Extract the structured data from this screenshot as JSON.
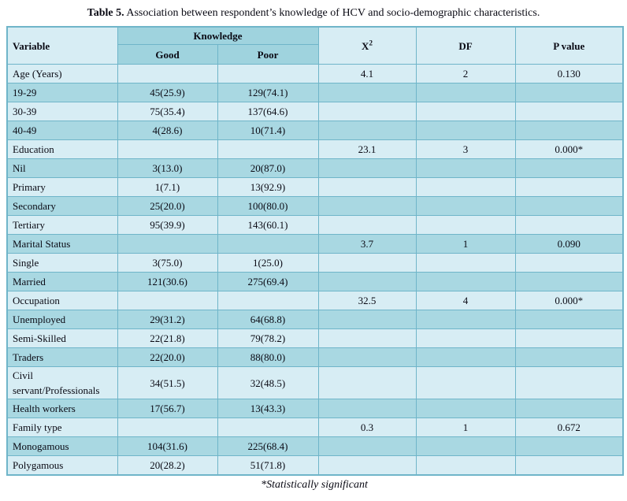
{
  "title": {
    "label": "Table 5.",
    "text": " Association between respondent’s knowledge of HCV and socio-demographic characteristics."
  },
  "table": {
    "header": {
      "variable": "Variable",
      "knowledge": "Knowledge",
      "good": "Good",
      "poor": "Poor",
      "chi_base": "X",
      "chi_sup": "2",
      "df": "DF",
      "p_value": "P value"
    },
    "rows": [
      {
        "variable": "Age (Years)",
        "good": "",
        "poor": "",
        "x2": "4.1",
        "df": "2",
        "p": "0.130"
      },
      {
        "variable": "19-29",
        "good": "45(25.9)",
        "poor": "129(74.1)",
        "x2": "",
        "df": "",
        "p": ""
      },
      {
        "variable": "30-39",
        "good": "75(35.4)",
        "poor": "137(64.6)",
        "x2": "",
        "df": "",
        "p": ""
      },
      {
        "variable": "40-49",
        "good": "4(28.6)",
        "poor": "10(71.4)",
        "x2": "",
        "df": "",
        "p": ""
      },
      {
        "variable": "Education",
        "good": "",
        "poor": "",
        "x2": "23.1",
        "df": "3",
        "p": "0.000*"
      },
      {
        "variable": "Nil",
        "good": "3(13.0)",
        "poor": "20(87.0)",
        "x2": "",
        "df": "",
        "p": ""
      },
      {
        "variable": "Primary",
        "good": "1(7.1)",
        "poor": "13(92.9)",
        "x2": "",
        "df": "",
        "p": ""
      },
      {
        "variable": "Secondary",
        "good": "25(20.0)",
        "poor": "100(80.0)",
        "x2": "",
        "df": "",
        "p": ""
      },
      {
        "variable": "Tertiary",
        "good": "95(39.9)",
        "poor": "143(60.1)",
        "x2": "",
        "df": "",
        "p": ""
      },
      {
        "variable": "Marital Status",
        "good": "",
        "poor": "",
        "x2": "3.7",
        "df": "1",
        "p": "0.090"
      },
      {
        "variable": "Single",
        "good": "3(75.0)",
        "poor": "1(25.0)",
        "x2": "",
        "df": "",
        "p": ""
      },
      {
        "variable": "Married",
        "good": "121(30.6)",
        "poor": "275(69.4)",
        "x2": "",
        "df": "",
        "p": ""
      },
      {
        "variable": "Occupation",
        "good": "",
        "poor": "",
        "x2": "32.5",
        "df": "4",
        "p": "0.000*"
      },
      {
        "variable": "Unemployed",
        "good": "29(31.2)",
        "poor": "64(68.8)",
        "x2": "",
        "df": "",
        "p": ""
      },
      {
        "variable": "Semi-Skilled",
        "good": "22(21.8)",
        "poor": "79(78.2)",
        "x2": "",
        "df": "",
        "p": ""
      },
      {
        "variable": "Traders",
        "good": "22(20.0)",
        "poor": "88(80.0)",
        "x2": "",
        "df": "",
        "p": ""
      },
      {
        "variable": "Civil\nservant/Professionals",
        "good": "34(51.5)",
        "poor": "32(48.5)",
        "x2": "",
        "df": "",
        "p": ""
      },
      {
        "variable": "Health workers",
        "good": "17(56.7)",
        "poor": "13(43.3)",
        "x2": "",
        "df": "",
        "p": ""
      },
      {
        "variable": "Family type",
        "good": "",
        "poor": "",
        "x2": "0.3",
        "df": "1",
        "p": "0.672"
      },
      {
        "variable": "Monogamous",
        "good": "104(31.6)",
        "poor": "225(68.4)",
        "x2": "",
        "df": "",
        "p": ""
      },
      {
        "variable": "Polygamous",
        "good": "20(28.2)",
        "poor": "51(71.8)",
        "x2": "",
        "df": "",
        "p": ""
      }
    ]
  },
  "footnote": "*Statistically significant",
  "colors": {
    "row_light": "#d7edf4",
    "row_dark": "#a9d8e2",
    "header_dark": "#9fd3de",
    "border": "#6fb5c9",
    "text": "#0a0a14",
    "page_bg": "#ffffff"
  }
}
